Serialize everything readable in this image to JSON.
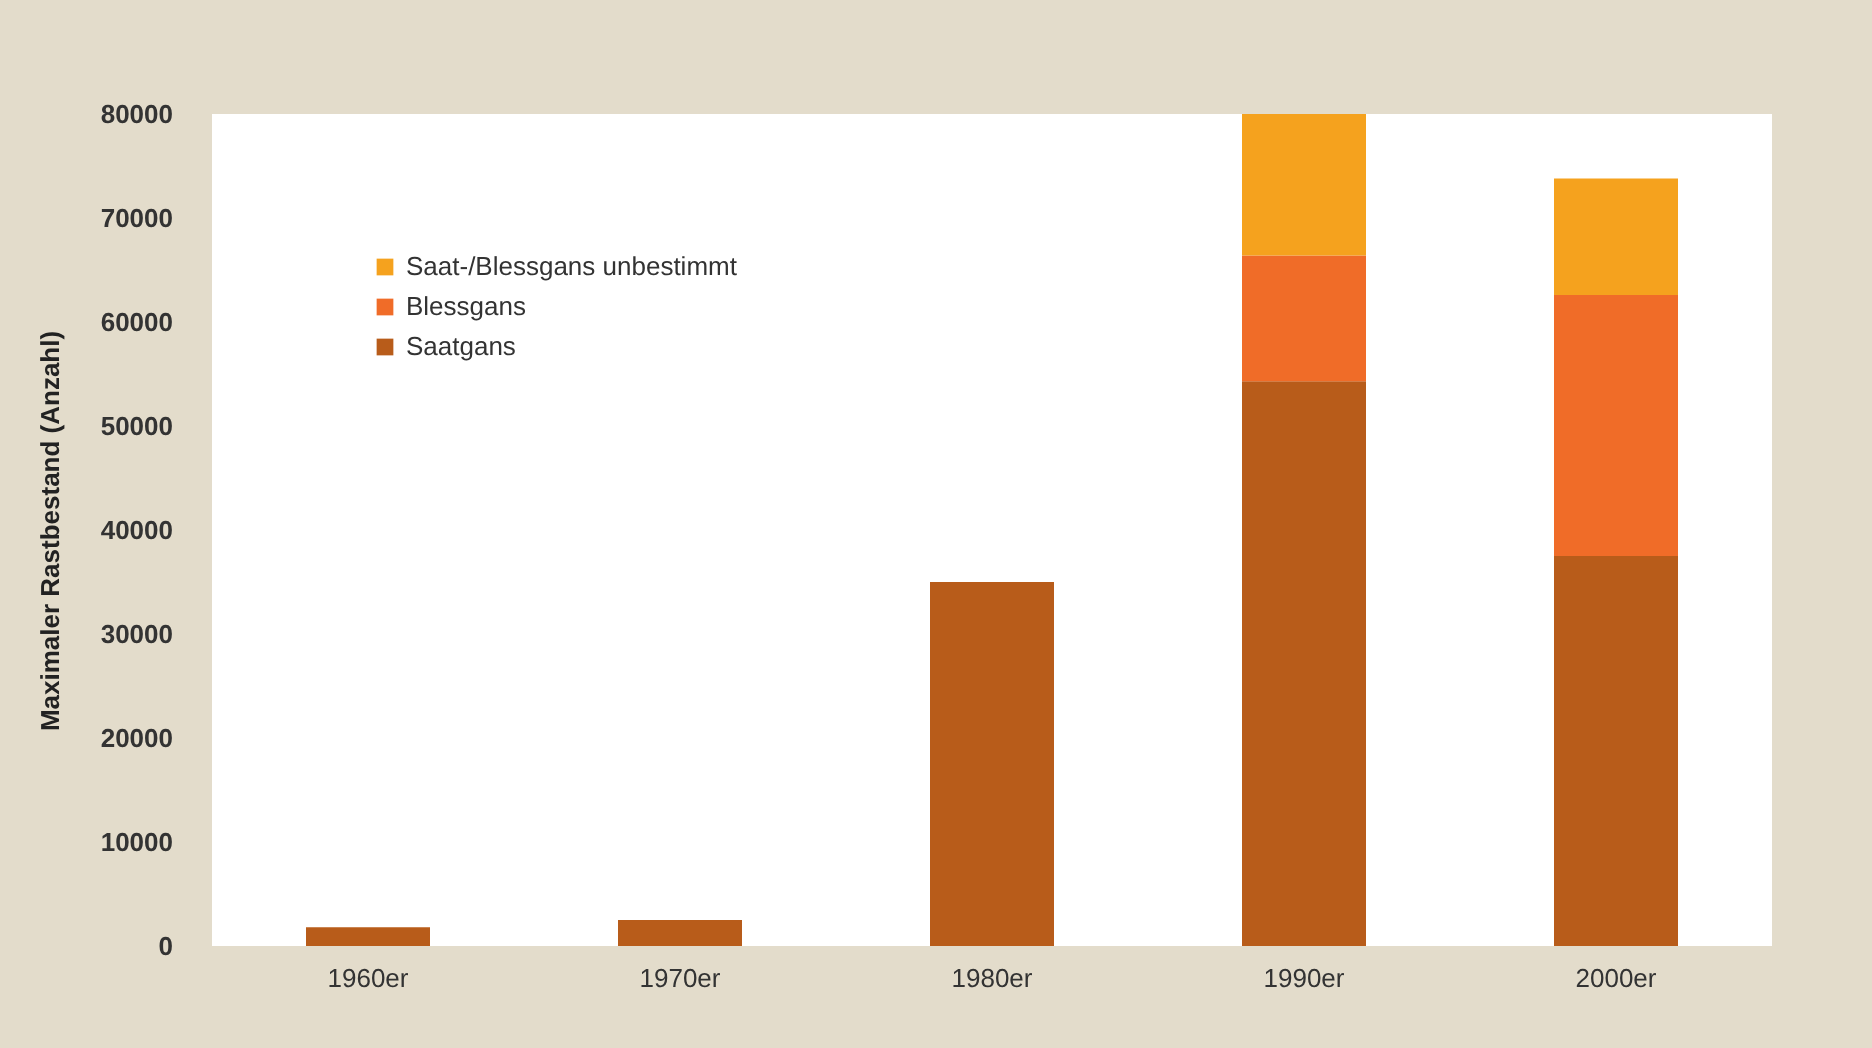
{
  "chart_data": {
    "type": "bar",
    "stacked": true,
    "ylabel": "Maximaler Rastbestand (Anzahl)",
    "categories": [
      "1960er",
      "1970er",
      "1980er",
      "1990er",
      "2000er"
    ],
    "series": [
      {
        "name": "Saatgans",
        "color": "#b85c1a",
        "values": [
          1800,
          2500,
          35000,
          54300,
          37500
        ]
      },
      {
        "name": "Blessgans",
        "color": "#f06c28",
        "values": [
          null,
          null,
          null,
          12100,
          25100
        ]
      },
      {
        "name": "Saat-/Blessgans unbestimmt",
        "color": "#f5a21e",
        "values": [
          null,
          null,
          null,
          13600,
          11200
        ]
      }
    ],
    "ylim": [
      0,
      80000
    ],
    "yticks": [
      0,
      10000,
      20000,
      30000,
      40000,
      50000,
      60000,
      70000,
      80000
    ],
    "legend": "top left"
  }
}
